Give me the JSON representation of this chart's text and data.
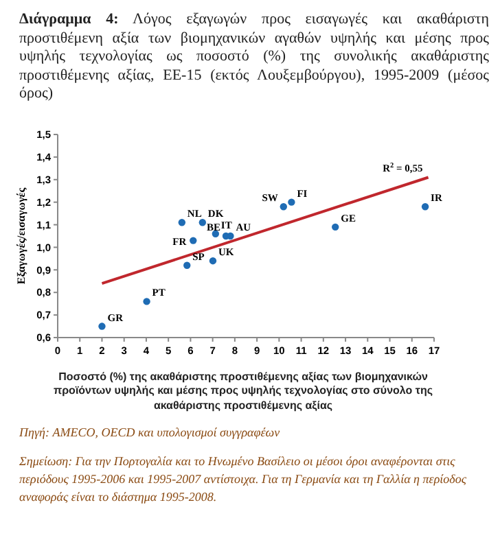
{
  "chart_data": {
    "type": "scatter",
    "title": "Διάγραμμα 4: Λόγος εξαγωγών προς εισαγωγές και ακαθάριστη προστιθέμενη αξία των βιομηχανικών αγαθών υψηλής και μέσης προς υψηλής τεχνολογίας ως ποσοστό (%) της συνολικής ακαθάριστης προστιθέμενης αξίας, ΕΕ-15 (εκτός Λουξεμβούργου), 1995-2009 (μέσος όρος)",
    "xlabel": "Ποσοστό (%) της ακαθάριστης προστιθέμενης αξίας των βιομηχανικών προϊόντων υψηλής και μέσης προς υψηλής τεχνολογίας στο σύνολο της ακαθάριστης προστιθέμενης αξίας",
    "ylabel": "Εξαγωγές/εισαγωγές",
    "series": [
      {
        "marker": "circle",
        "color": "#1f6cb4",
        "x": [
          2.0,
          4.02,
          5.84,
          7.01,
          6.12,
          5.61,
          6.54,
          7.13,
          7.6,
          7.8,
          10.2,
          10.56,
          12.54,
          16.6
        ],
        "values": [
          0.65,
          0.76,
          0.92,
          0.94,
          1.03,
          1.11,
          1.11,
          1.06,
          1.05,
          1.05,
          1.18,
          1.2,
          1.09,
          1.18
        ]
      },
      {
        "type": "line",
        "color": "#c0272d",
        "x": [
          2.0,
          16.74
        ],
        "values": [
          0.84,
          1.31
        ]
      }
    ],
    "xlim": [
      0,
      17
    ],
    "xticks": [
      0,
      1,
      2,
      3,
      4,
      5,
      6,
      7,
      8,
      9,
      10,
      11,
      12,
      13,
      14,
      15,
      16,
      17
    ],
    "ylim": [
      0.6,
      1.5
    ],
    "yticks": [
      {
        "value": 0.6,
        "label": "0,6"
      },
      {
        "value": 0.7,
        "label": "0,7"
      },
      {
        "value": 0.8,
        "label": "0,8"
      },
      {
        "value": 0.9,
        "label": "0,9"
      },
      {
        "value": 1.0,
        "label": "1,0"
      },
      {
        "value": 1.1,
        "label": "1,1"
      },
      {
        "value": 1.2,
        "label": "1,2"
      },
      {
        "value": 1.3,
        "label": "1,3"
      },
      {
        "value": 1.4,
        "label": "1,4"
      },
      {
        "value": 1.5,
        "label": "1,5"
      }
    ],
    "grid": false,
    "annotations": [
      {
        "text": "GR",
        "x": 2.0,
        "y": 0.65
      },
      {
        "text": "PT",
        "x": 4.02,
        "y": 0.76
      },
      {
        "text": "SP",
        "x": 5.84,
        "y": 0.92
      },
      {
        "text": "UK",
        "x": 7.01,
        "y": 0.94
      },
      {
        "text": "FR",
        "x": 6.12,
        "y": 1.03
      },
      {
        "text": "NL",
        "x": 5.61,
        "y": 1.11
      },
      {
        "text": "DK",
        "x": 6.54,
        "y": 1.11
      },
      {
        "text": "IT",
        "x": 7.13,
        "y": 1.06
      },
      {
        "text": "BE",
        "x": 7.6,
        "y": 1.05
      },
      {
        "text": "AU",
        "x": 7.8,
        "y": 1.05
      },
      {
        "text": "SW",
        "x": 10.2,
        "y": 1.18
      },
      {
        "text": "FI",
        "x": 10.56,
        "y": 1.2
      },
      {
        "text": "GE",
        "x": 12.54,
        "y": 1.09
      },
      {
        "text": "IR",
        "x": 16.6,
        "y": 1.18
      },
      {
        "text": "R$^{2}$ = 0,55",
        "x": 16.74,
        "y": 1.31
      },
      "Πηγή: AMECO, OECD και υπολογισμοί συγγραφέων",
      "Σημείωση: Για την Πορτογαλία και το Ηνωμένο Βασίλειο οι μέσοι όροι αναφέρονται στις περιόδους 1995-2006 και 1995-2007 αντίστοιχα. Για τη Γερμανία και τη Γαλλία η περίοδος αναφοράς είναι το διάστημα 1995-2008."
    ]
  }
}
